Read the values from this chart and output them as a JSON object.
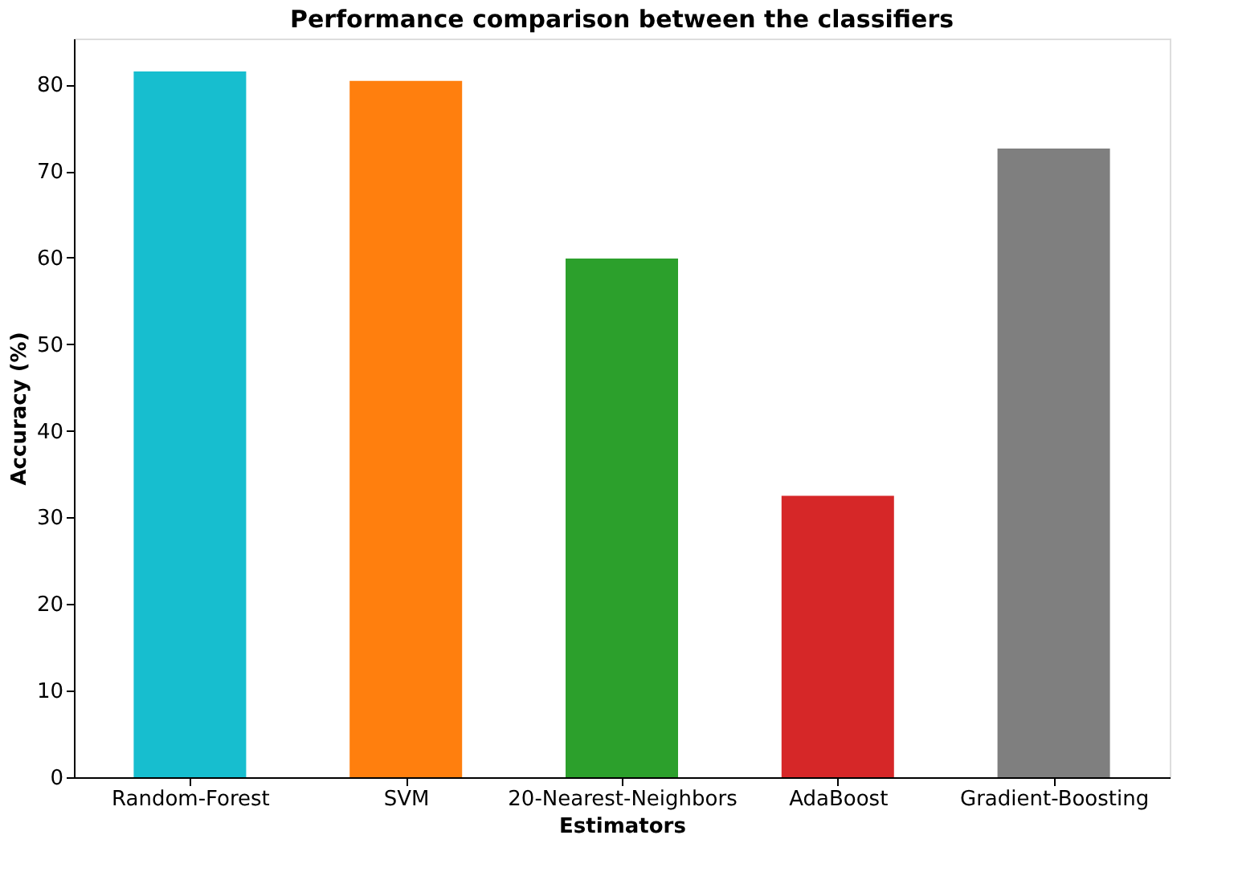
{
  "chart_data": {
    "type": "bar",
    "title": "Performance comparison between the classifiers",
    "xlabel": "Estimators",
    "ylabel": "Accuracy (%)",
    "categories": [
      "Random-Forest",
      "SVM",
      "20-Nearest-Neighbors",
      "AdaBoost",
      "Gradient-Boosting"
    ],
    "values": [
      81.5,
      80.4,
      59.9,
      32.5,
      72.6
    ],
    "colors": [
      "#17becf",
      "#ff7f0e",
      "#2ca02c",
      "#d62728",
      "#7f7f7f"
    ],
    "ylim": [
      0,
      85.3
    ],
    "yticks": [
      0,
      10,
      20,
      30,
      40,
      50,
      60,
      70,
      80
    ]
  }
}
